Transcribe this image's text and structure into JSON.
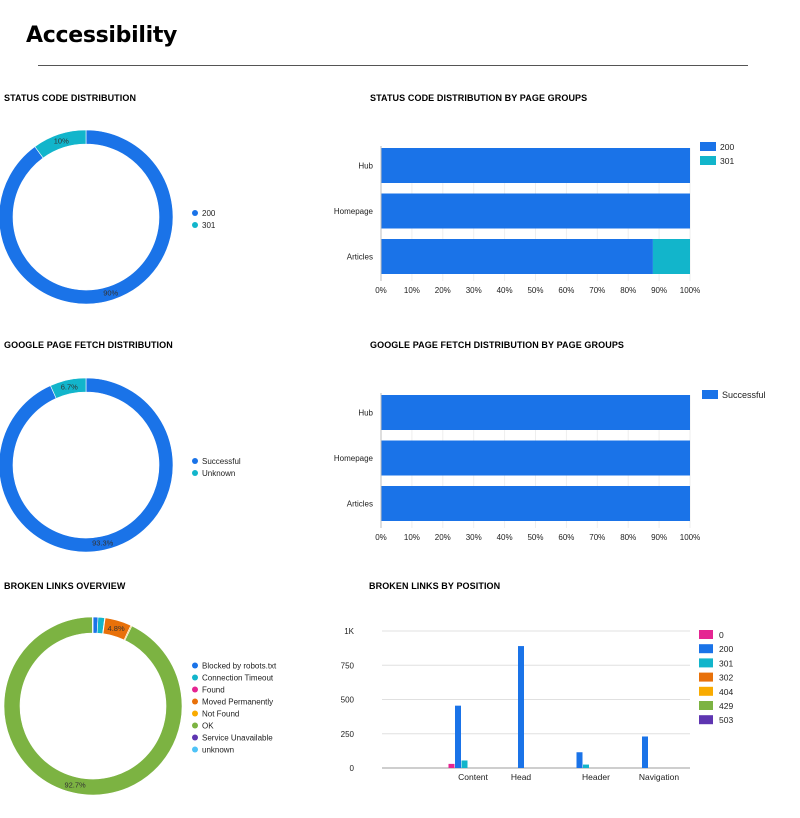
{
  "page": {
    "title": "Accessibility"
  },
  "colors": {
    "blue": "#1a73e8",
    "teal": "#12b5cb",
    "magenta": "#e52592",
    "orange": "#e8710a",
    "amber": "#f9ab00",
    "green": "#7cb342",
    "purple": "#5e35b1",
    "lightblue": "#4fc3f7",
    "grid": "#e0e0e0",
    "axis": "#9e9e9e"
  },
  "chart_data": [
    {
      "id": "status_code_distribution",
      "type": "pie",
      "title": "STATUS CODE DISTRIBUTION",
      "slices": [
        {
          "label": "200",
          "value": 90,
          "display": "90%",
          "color": "#1a73e8"
        },
        {
          "label": "301",
          "value": 10,
          "display": "10%",
          "color": "#12b5cb"
        }
      ],
      "legend": "right"
    },
    {
      "id": "status_code_by_page_groups",
      "type": "bar",
      "orientation": "horizontal",
      "stacked": "percent",
      "title": "STATUS CODE DISTRIBUTION BY PAGE GROUPS",
      "categories": [
        "Hub",
        "Homepage",
        "Articles"
      ],
      "series": [
        {
          "name": "200",
          "color": "#1a73e8",
          "values": [
            100,
            100,
            88
          ]
        },
        {
          "name": "301",
          "color": "#12b5cb",
          "values": [
            0,
            0,
            12
          ]
        }
      ],
      "xticks": [
        "0%",
        "10%",
        "20%",
        "30%",
        "40%",
        "50%",
        "60%",
        "70%",
        "80%",
        "90%",
        "100%"
      ],
      "xlim": [
        0,
        100
      ],
      "legend": "top-right"
    },
    {
      "id": "google_page_fetch_distribution",
      "type": "pie",
      "title": "GOOGLE PAGE FETCH DISTRIBUTION",
      "slices": [
        {
          "label": "Successful",
          "value": 93.3,
          "display": "93.3%",
          "color": "#1a73e8"
        },
        {
          "label": "Unknown",
          "value": 6.7,
          "display": "6.7%",
          "color": "#12b5cb"
        }
      ],
      "legend": "right"
    },
    {
      "id": "google_page_fetch_by_page_groups",
      "type": "bar",
      "orientation": "horizontal",
      "stacked": "percent",
      "title": "GOOGLE PAGE FETCH DISTRIBUTION BY PAGE GROUPS",
      "categories": [
        "Hub",
        "Homepage",
        "Articles"
      ],
      "series": [
        {
          "name": "Successful",
          "color": "#1a73e8",
          "values": [
            100,
            100,
            100
          ]
        }
      ],
      "xticks": [
        "0%",
        "10%",
        "20%",
        "30%",
        "40%",
        "50%",
        "60%",
        "70%",
        "80%",
        "90%",
        "100%"
      ],
      "xlim": [
        0,
        100
      ],
      "legend": "top-right"
    },
    {
      "id": "broken_links_overview",
      "type": "pie",
      "title": "BROKEN LINKS OVERVIEW",
      "slices": [
        {
          "label": "Blocked by robots.txt",
          "value": 0.9,
          "display": "",
          "color": "#1a73e8"
        },
        {
          "label": "Connection Timeout",
          "value": 1.2,
          "display": "",
          "color": "#12b5cb"
        },
        {
          "label": "Found",
          "value": 0.1,
          "display": "",
          "color": "#e52592"
        },
        {
          "label": "Moved Permanently",
          "value": 4.8,
          "display": "4.8%",
          "color": "#e8710a"
        },
        {
          "label": "Not Found",
          "value": 0.2,
          "display": "",
          "color": "#f9ab00"
        },
        {
          "label": "OK",
          "value": 92.7,
          "display": "92.7%",
          "color": "#7cb342"
        },
        {
          "label": "Service Unavailable",
          "value": 0.05,
          "display": "",
          "color": "#5e35b1"
        },
        {
          "label": "unknown",
          "value": 0.05,
          "display": "",
          "color": "#4fc3f7"
        }
      ],
      "legend": "right"
    },
    {
      "id": "broken_links_by_position",
      "type": "bar",
      "orientation": "vertical",
      "title": "BROKEN LINKS BY POSITION",
      "categories": [
        "Content",
        "Head",
        "Header",
        "Navigation"
      ],
      "series": [
        {
          "name": "0",
          "color": "#e52592",
          "values": [
            30,
            0,
            0,
            0
          ]
        },
        {
          "name": "200",
          "color": "#1a73e8",
          "values": [
            455,
            890,
            115,
            230
          ]
        },
        {
          "name": "301",
          "color": "#12b5cb",
          "values": [
            55,
            0,
            25,
            0
          ]
        },
        {
          "name": "302",
          "color": "#e8710a",
          "values": [
            0,
            0,
            0,
            0
          ]
        },
        {
          "name": "404",
          "color": "#f9ab00",
          "values": [
            0,
            0,
            0,
            0
          ]
        },
        {
          "name": "429",
          "color": "#7cb342",
          "values": [
            0,
            0,
            0,
            0
          ]
        },
        {
          "name": "503",
          "color": "#5e35b1",
          "values": [
            0,
            0,
            0,
            0
          ]
        }
      ],
      "yticks": [
        0,
        250,
        500,
        750,
        1000
      ],
      "ytick_labels": [
        "0",
        "250",
        "500",
        "750",
        "1K"
      ],
      "ylim": [
        0,
        1000
      ],
      "legend": "right"
    }
  ]
}
